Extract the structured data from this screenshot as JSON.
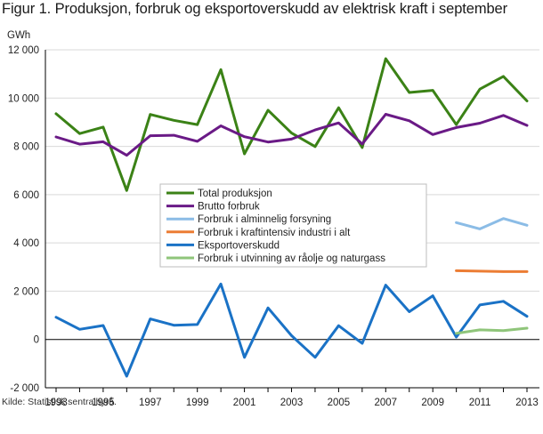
{
  "chart_data": {
    "type": "line",
    "title": "Figur 1. Produksjon, forbruk og eksportoverskudd av elektrisk kraft i september",
    "ylabel": "GWh",
    "xlabel": "",
    "source": "Kilde: Statistisk sentralbyrå.",
    "ylim": [
      -2000,
      12000
    ],
    "yticks": [
      -2000,
      0,
      2000,
      4000,
      6000,
      8000,
      10000,
      12000
    ],
    "ytick_labels": [
      "-2 000",
      "0",
      "2 000",
      "4 000",
      "6 000",
      "8 000",
      "10 000",
      "12 000"
    ],
    "xlim": [
      1993,
      2013
    ],
    "xticks": [
      1993,
      1995,
      1997,
      1999,
      2001,
      2003,
      2005,
      2007,
      2009,
      2011,
      2013
    ],
    "xtick_labels": [
      "1993",
      "1995",
      "1997",
      "1999",
      "2001",
      "2003",
      "2005",
      "2007",
      "2009",
      "2011",
      "2013"
    ],
    "legend_position": "center-right",
    "series": [
      {
        "name": "Total produksjon",
        "color": "#3b8216",
        "x": [
          1993,
          1994,
          1995,
          1996,
          1997,
          1998,
          1999,
          2000,
          2001,
          2002,
          2003,
          2004,
          2005,
          2006,
          2007,
          2008,
          2009,
          2010,
          2011,
          2012,
          2013
        ],
        "values": [
          9350,
          8530,
          8800,
          6170,
          9320,
          9080,
          8900,
          11180,
          7690,
          9500,
          8550,
          7990,
          9600,
          7950,
          11630,
          10230,
          10320,
          8900,
          10370,
          10900,
          9880
        ]
      },
      {
        "name": "Brutto forbruk",
        "color": "#6a1a86",
        "x": [
          1993,
          1994,
          1995,
          1996,
          1997,
          1998,
          1999,
          2000,
          2001,
          2002,
          2003,
          2004,
          2005,
          2006,
          2007,
          2008,
          2009,
          2010,
          2011,
          2012,
          2013
        ],
        "values": [
          8390,
          8090,
          8190,
          7630,
          8440,
          8460,
          8210,
          8850,
          8400,
          8180,
          8300,
          8680,
          8970,
          8100,
          9330,
          9060,
          8490,
          8780,
          8960,
          9280,
          8870
        ]
      },
      {
        "name": "Forbruk i alminnelig forsyning",
        "color": "#8bbce6",
        "x": [
          2010,
          2011,
          2012,
          2013
        ],
        "values": [
          4840,
          4580,
          5010,
          4730
        ]
      },
      {
        "name": "Forbruk i kraftintensiv industri i alt",
        "color": "#ec7d34",
        "x": [
          2010,
          2011,
          2012,
          2013
        ],
        "values": [
          2850,
          2830,
          2810,
          2810
        ]
      },
      {
        "name": "Eksportoverskudd",
        "color": "#1a72c6",
        "x": [
          1993,
          1994,
          1995,
          1996,
          1997,
          1998,
          1999,
          2000,
          2001,
          2002,
          2003,
          2004,
          2005,
          2006,
          2007,
          2008,
          2009,
          2010,
          2011,
          2012,
          2013
        ],
        "values": [
          920,
          420,
          580,
          -1520,
          850,
          590,
          620,
          2300,
          -740,
          1310,
          160,
          -740,
          570,
          -160,
          2250,
          1150,
          1810,
          100,
          1430,
          1580,
          960
        ]
      },
      {
        "name": "Forbruk i utvinning av råolje og naturgass",
        "color": "#8fc57a",
        "x": [
          2010,
          2011,
          2012,
          2013
        ],
        "values": [
          250,
          400,
          370,
          470
        ]
      }
    ]
  }
}
